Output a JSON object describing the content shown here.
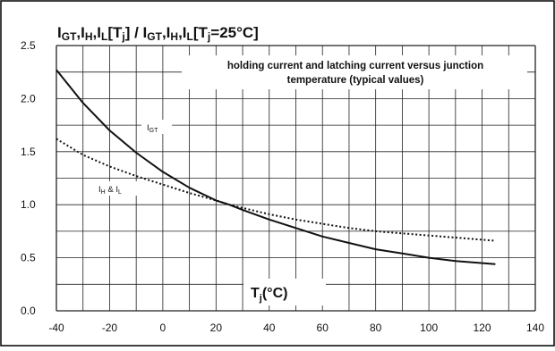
{
  "chart_data": {
    "type": "line",
    "title_parts": {
      "I1": "I",
      "s1": "GT",
      "c1": ",I",
      "s2": "H",
      "c2": ",I",
      "s3": "L",
      "c3": "[T",
      "s4": "j",
      "c4": "] / I",
      "s5": "GT",
      "c5": ",I",
      "s6": "H",
      "c6": ",I",
      "s7": "L",
      "c7": "[T",
      "s8": "j",
      "c8": "=25°C]"
    },
    "subtitle_lines": [
      "holding current and latching current versus junction",
      "temperature (typical values)"
    ],
    "xlabel_parts": {
      "a": "T",
      "sub": "j",
      "b": "(°C)"
    },
    "xlim": [
      -40,
      140
    ],
    "ylim": [
      0.0,
      2.5
    ],
    "x_ticks": [
      "-40",
      "-20",
      "0",
      "20",
      "40",
      "60",
      "80",
      "100",
      "120",
      "140"
    ],
    "y_ticks": [
      "0.0",
      "0.5",
      "1.0",
      "1.5",
      "2.0",
      "2.5"
    ],
    "grid": true,
    "series": [
      {
        "name": "IGT",
        "label_parts": {
          "a": "I",
          "sub": "GT"
        },
        "style": "solid",
        "color": "#111111",
        "points": [
          [
            -40,
            2.27
          ],
          [
            -30,
            1.96
          ],
          [
            -20,
            1.7
          ],
          [
            -10,
            1.49
          ],
          [
            0,
            1.31
          ],
          [
            10,
            1.16
          ],
          [
            20,
            1.04
          ],
          [
            25,
            1.0
          ],
          [
            30,
            0.95
          ],
          [
            40,
            0.86
          ],
          [
            50,
            0.78
          ],
          [
            60,
            0.7
          ],
          [
            70,
            0.64
          ],
          [
            80,
            0.58
          ],
          [
            90,
            0.54
          ],
          [
            100,
            0.5
          ],
          [
            110,
            0.47
          ],
          [
            125,
            0.44
          ]
        ]
      },
      {
        "name": "IH & IL",
        "label_parts": {
          "a": "I",
          "sub1": "H",
          "mid": " & I",
          "sub2": "L"
        },
        "style": "dotted",
        "color": "#111111",
        "points": [
          [
            -40,
            1.62
          ],
          [
            -30,
            1.47
          ],
          [
            -20,
            1.36
          ],
          [
            -10,
            1.27
          ],
          [
            0,
            1.19
          ],
          [
            10,
            1.11
          ],
          [
            20,
            1.04
          ],
          [
            25,
            1.0
          ],
          [
            30,
            0.97
          ],
          [
            40,
            0.91
          ],
          [
            50,
            0.86
          ],
          [
            60,
            0.82
          ],
          [
            70,
            0.78
          ],
          [
            80,
            0.75
          ],
          [
            90,
            0.73
          ],
          [
            100,
            0.71
          ],
          [
            110,
            0.69
          ],
          [
            125,
            0.66
          ]
        ]
      }
    ]
  }
}
